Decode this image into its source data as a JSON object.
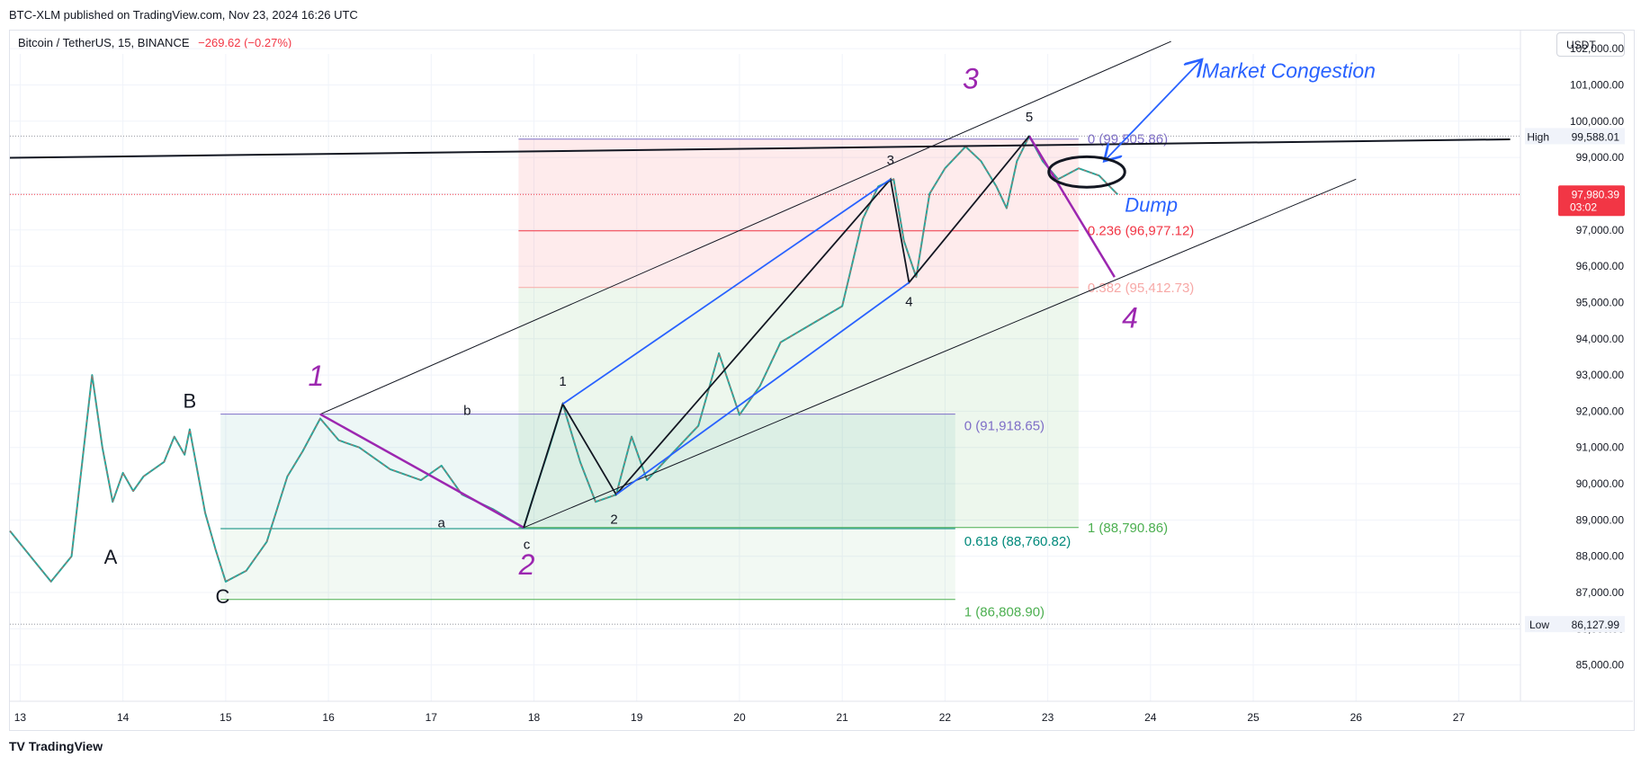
{
  "header": {
    "publish_line": "BTC-XLM published on TradingView.com, Nov 23, 2024 16:26 UTC",
    "symbol_name": "Bitcoin / TetherUS, 15, BINANCE",
    "symbol_change": "−269.62 (−0.27%)",
    "currency": "USDT"
  },
  "footer": {
    "logo": "TV",
    "brand": "TradingView"
  },
  "colors": {
    "down": "#f23645",
    "up": "#089981",
    "purple": "#9c27b0",
    "blue": "#2962ff",
    "fib_red": "#f23645",
    "fib_pink": "#f7a9a7",
    "fib_green": "#4caf50",
    "fib_violet": "#7e6ec7"
  },
  "chart_data": {
    "type": "line",
    "title": "Bitcoin / TetherUS, 15, BINANCE",
    "x_tick_labels": [
      "13",
      "14",
      "15",
      "16",
      "17",
      "18",
      "19",
      "20",
      "21",
      "22",
      "23",
      "24",
      "25",
      "26",
      "27"
    ],
    "x_tick_days": [
      13,
      14,
      15,
      16,
      17,
      18,
      19,
      20,
      21,
      22,
      23,
      24,
      25,
      26,
      27
    ],
    "y_tick_values": [
      85000,
      86000,
      87000,
      88000,
      89000,
      90000,
      91000,
      92000,
      93000,
      94000,
      95000,
      96000,
      97000,
      98000,
      99000,
      100000,
      101000,
      102000
    ],
    "y_tick_labels": [
      "85,000.00",
      "86,000.00",
      "87,000.00",
      "88,000.00",
      "89,000.00",
      "90,000.00",
      "91,000.00",
      "92,000.00",
      "93,000.00",
      "94,000.00",
      "95,000.00",
      "96,000.00",
      "97,000.00",
      "98,000.00",
      "99,000.00",
      "100,000.00",
      "101,000.00",
      "102,000.00"
    ],
    "ylim": [
      84000,
      102500
    ],
    "xlim": [
      12.9,
      27.6
    ],
    "price_series": {
      "x": [
        12.9,
        13.1,
        13.3,
        13.5,
        13.6,
        13.7,
        13.8,
        13.9,
        14.0,
        14.1,
        14.2,
        14.4,
        14.5,
        14.6,
        14.65,
        14.8,
        14.9,
        15.0,
        15.2,
        15.4,
        15.6,
        15.75,
        15.92,
        16.1,
        16.3,
        16.6,
        16.9,
        17.1,
        17.3,
        17.6,
        17.9,
        18.0,
        18.15,
        18.28,
        18.45,
        18.6,
        18.8,
        18.95,
        19.1,
        19.3,
        19.6,
        19.8,
        20.0,
        20.2,
        20.4,
        20.7,
        21.0,
        21.2,
        21.35,
        21.5,
        21.6,
        21.72,
        21.85,
        22.0,
        22.2,
        22.35,
        22.5,
        22.6,
        22.7,
        22.82,
        22.95,
        23.1,
        23.3,
        23.5,
        23.68
      ],
      "y": [
        88700,
        88000,
        87300,
        88000,
        90500,
        93000,
        91000,
        89500,
        90300,
        89800,
        90200,
        90600,
        91300,
        90800,
        91500,
        89200,
        88200,
        87300,
        87600,
        88400,
        90200,
        90900,
        91800,
        91200,
        91000,
        90400,
        90100,
        90500,
        89700,
        89300,
        88790,
        89700,
        91000,
        92200,
        90600,
        89500,
        89700,
        91300,
        90100,
        90700,
        91600,
        93600,
        91900,
        92700,
        93900,
        94400,
        94900,
        97300,
        98200,
        98400,
        96700,
        95700,
        98000,
        98700,
        99300,
        98900,
        98200,
        97600,
        98900,
        99590,
        98900,
        98400,
        98700,
        98500,
        97980
      ]
    },
    "horizontal_levels": [
      {
        "name": "High",
        "value": 99588.01,
        "label": "99,588.01"
      },
      {
        "name": "Low",
        "value": 86127.99,
        "label": "86,127.99"
      },
      {
        "name": "Last",
        "value": 97980.39,
        "label": "97,980.39",
        "sub": "03:02"
      }
    ],
    "fib_upper": {
      "x_start": 17.85,
      "x_end": 23.3,
      "levels": [
        {
          "ratio": "0",
          "value": 99505.86,
          "text": "0 (99,505.86)"
        },
        {
          "ratio": "0.236",
          "value": 96977.12,
          "text": "0.236 (96,977.12)"
        },
        {
          "ratio": "0.382",
          "value": 95412.73,
          "text": "0.382 (95,412.73)"
        },
        {
          "ratio": "1",
          "value": 88790.86,
          "text": "1 (88,790.86)"
        }
      ]
    },
    "fib_lower": {
      "x_start": 14.95,
      "x_end": 22.1,
      "levels": [
        {
          "ratio": "0",
          "value": 91918.65,
          "text": "0 (91,918.65)"
        },
        {
          "ratio": "0.618",
          "value": 88760.82,
          "text": "0.618 (88,760.82)"
        },
        {
          "ratio": "1",
          "value": 86808.9,
          "text": "1 (86,808.90)"
        }
      ]
    },
    "trendlines": [
      {
        "style": "thin",
        "x1": 15.92,
        "y1": 91918,
        "x2": 24.2,
        "y2": 102200
      },
      {
        "style": "thin",
        "x1": 17.9,
        "y1": 88790,
        "x2": 26.0,
        "y2": 98400
      },
      {
        "style": "thick",
        "x1": 12.9,
        "y1": 98990,
        "x2": 27.5,
        "y2": 99500
      }
    ],
    "wave_paths": [
      {
        "color": "purple",
        "points": [
          [
            15.92,
            91918
          ],
          [
            17.9,
            88790
          ]
        ]
      },
      {
        "color": "purple",
        "points": [
          [
            22.82,
            99590
          ],
          [
            23.65,
            95700
          ]
        ]
      },
      {
        "color": "black",
        "points": [
          [
            17.9,
            88790
          ],
          [
            18.28,
            92200
          ],
          [
            18.8,
            89700
          ],
          [
            21.47,
            98400
          ],
          [
            21.65,
            95550
          ],
          [
            22.82,
            99590
          ]
        ]
      },
      {
        "color": "blue",
        "points": [
          [
            18.28,
            92200
          ],
          [
            21.47,
            98400
          ]
        ]
      },
      {
        "color": "blue",
        "points": [
          [
            18.8,
            89700
          ],
          [
            21.65,
            95550
          ]
        ]
      },
      {
        "color": "blue",
        "points": [
          [
            23.55,
            98900
          ],
          [
            24.5,
            101700
          ]
        ],
        "arrow": true
      }
    ],
    "wave_labels": [
      {
        "text": "1",
        "x": 15.88,
        "y": 92700,
        "style": "big"
      },
      {
        "text": "2",
        "x": 17.93,
        "y": 87500,
        "style": "big"
      },
      {
        "text": "3",
        "x": 22.25,
        "y": 100900,
        "style": "big"
      },
      {
        "text": "4",
        "x": 23.8,
        "y": 94300,
        "style": "big"
      },
      {
        "text": "1",
        "x": 18.28,
        "y": 92700,
        "style": "small"
      },
      {
        "text": "2",
        "x": 18.78,
        "y": 88900,
        "style": "small"
      },
      {
        "text": "3",
        "x": 21.47,
        "y": 98800,
        "style": "small"
      },
      {
        "text": "4",
        "x": 21.65,
        "y": 94900,
        "style": "small"
      },
      {
        "text": "5",
        "x": 22.82,
        "y": 100000,
        "style": "small"
      },
      {
        "text": "a",
        "x": 17.1,
        "y": 88800,
        "style": "small"
      },
      {
        "text": "b",
        "x": 17.35,
        "y": 91900,
        "style": "small"
      },
      {
        "text": "c",
        "x": 17.93,
        "y": 88200,
        "style": "small"
      },
      {
        "text": "A",
        "x": 13.88,
        "y": 87800,
        "style": "letter"
      },
      {
        "text": "B",
        "x": 14.65,
        "y": 92100,
        "style": "letter"
      },
      {
        "text": "C",
        "x": 14.97,
        "y": 86700,
        "style": "letter"
      }
    ],
    "annotations": [
      {
        "text": "Market Congestion",
        "x": 24.5,
        "y": 101200,
        "color": "blue"
      },
      {
        "text": "Dump",
        "x": 23.75,
        "y": 97500,
        "color": "blue"
      }
    ],
    "congestion_ellipse": {
      "cx": 23.38,
      "cy": 98600,
      "rx_days": 0.37,
      "ry_value": 420
    }
  }
}
